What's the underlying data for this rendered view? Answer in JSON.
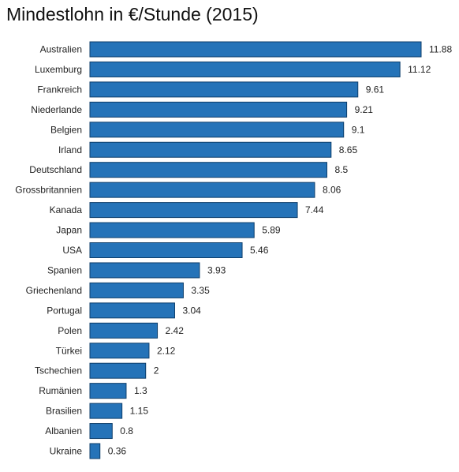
{
  "chart_data": {
    "type": "bar",
    "orientation": "horizontal",
    "title": "Mindestlohn in €/Stunde (2015)",
    "categories": [
      "Australien",
      "Luxemburg",
      "Frankreich",
      "Niederlande",
      "Belgien",
      "Irland",
      "Deutschland",
      "Grossbritannien",
      "Kanada",
      "Japan",
      "USA",
      "Spanien",
      "Griechenland",
      "Portugal",
      "Polen",
      "Türkei",
      "Tschechien",
      "Rumänien",
      "Brasilien",
      "Albanien",
      "Ukraine"
    ],
    "values": [
      11.88,
      11.12,
      9.61,
      9.21,
      9.1,
      8.65,
      8.5,
      8.06,
      7.44,
      5.89,
      5.46,
      3.93,
      3.35,
      3.04,
      2.42,
      2.12,
      2,
      1.3,
      1.15,
      0.8,
      0.36
    ],
    "value_labels": [
      "11.88",
      "11.12",
      "9.61",
      "9.21",
      "9.1",
      "8.65",
      "8.5",
      "8.06",
      "7.44",
      "5.89",
      "5.46",
      "3.93",
      "3.35",
      "3.04",
      "2.42",
      "2.12",
      "2",
      "1.3",
      "1.15",
      "0.8",
      "0.36"
    ],
    "xlim": [
      0,
      11.88
    ],
    "grid": false,
    "legend": "none",
    "bar_color": "#2573b8",
    "bar_edge_color": "#0d3e6b"
  }
}
